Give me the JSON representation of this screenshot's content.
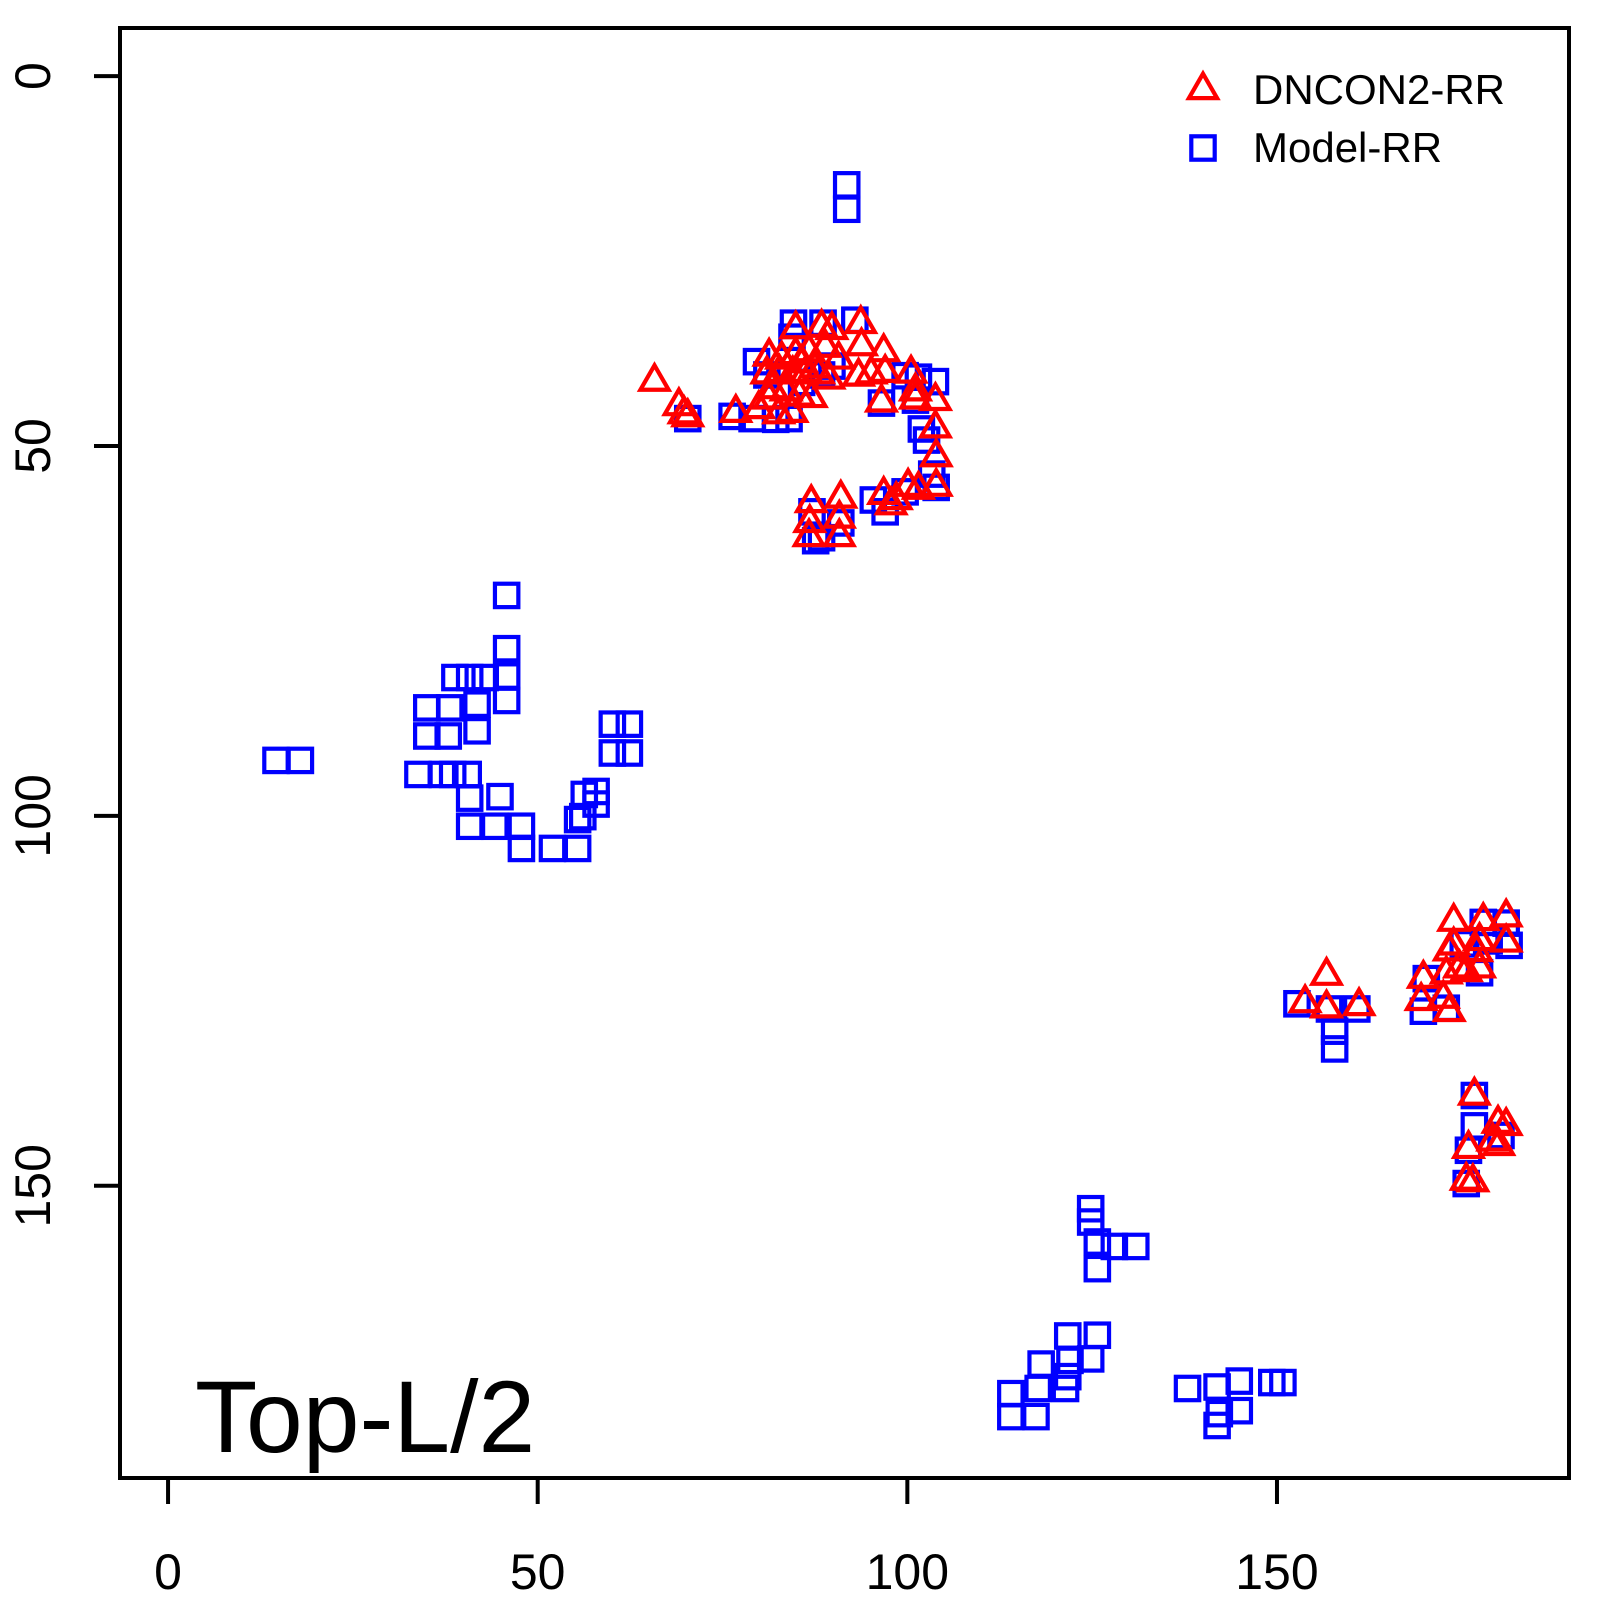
{
  "chart_data": {
    "type": "scatter",
    "title": "Top-L/2",
    "xlabel": "",
    "ylabel": "",
    "xlim": [
      -6.5,
      189.5
    ],
    "ylim": [
      -6.5,
      189.5
    ],
    "y_axis_reversed": true,
    "grid": false,
    "axis_color": "#000000",
    "x_ticks": [
      0,
      50,
      100,
      150
    ],
    "y_ticks": [
      0,
      50,
      100,
      150
    ],
    "legend_position": "top-right",
    "series": [
      {
        "name": "Model-RR",
        "marker": "open-square",
        "color": "#0000FF",
        "points": [
          [
            91.8,
            14.7
          ],
          [
            91.8,
            18.0
          ],
          [
            70.3,
            46.3
          ],
          [
            76.3,
            46.0
          ],
          [
            79.0,
            46.3
          ],
          [
            82.2,
            46.4
          ],
          [
            84.0,
            46.3
          ],
          [
            84.6,
            33.4
          ],
          [
            88.6,
            33.4
          ],
          [
            92.9,
            33.0
          ],
          [
            84.4,
            35.3
          ],
          [
            79.6,
            38.6
          ],
          [
            81.0,
            40.4
          ],
          [
            85.7,
            41.4
          ],
          [
            88.4,
            40.4
          ],
          [
            89.8,
            39.2
          ],
          [
            99.7,
            40.5
          ],
          [
            101.5,
            40.7
          ],
          [
            103.8,
            41.3
          ],
          [
            96.5,
            44.2
          ],
          [
            101.1,
            43.8
          ],
          [
            101.9,
            47.7
          ],
          [
            102.6,
            49.2
          ],
          [
            103.3,
            53.8
          ],
          [
            103.9,
            55.6
          ],
          [
            95.4,
            57.3
          ],
          [
            99.7,
            56.2
          ],
          [
            97.0,
            58.9
          ],
          [
            87.1,
            58.9
          ],
          [
            91.0,
            60.4
          ],
          [
            88.4,
            62.4
          ],
          [
            87.6,
            62.8
          ],
          [
            45.8,
            70.2
          ],
          [
            45.8,
            77.4
          ],
          [
            38.8,
            81.3
          ],
          [
            40.8,
            81.3
          ],
          [
            42.9,
            81.3
          ],
          [
            45.8,
            81.1
          ],
          [
            45.8,
            84.4
          ],
          [
            35.0,
            85.4
          ],
          [
            38.1,
            85.4
          ],
          [
            41.8,
            84.9
          ],
          [
            35.0,
            89.2
          ],
          [
            37.9,
            89.2
          ],
          [
            41.8,
            88.5
          ],
          [
            14.6,
            92.5
          ],
          [
            17.9,
            92.5
          ],
          [
            60.1,
            87.6
          ],
          [
            62.4,
            87.6
          ],
          [
            60.1,
            91.5
          ],
          [
            62.4,
            91.5
          ],
          [
            33.8,
            94.4
          ],
          [
            37.1,
            94.4
          ],
          [
            38.5,
            94.4
          ],
          [
            40.6,
            94.4
          ],
          [
            40.8,
            97.6
          ],
          [
            44.9,
            97.4
          ],
          [
            56.3,
            97.1
          ],
          [
            57.9,
            96.7
          ],
          [
            57.9,
            98.4
          ],
          [
            55.4,
            100.5
          ],
          [
            56.1,
            100.1
          ],
          [
            40.8,
            101.4
          ],
          [
            44.2,
            101.4
          ],
          [
            47.8,
            101.4
          ],
          [
            47.8,
            104.4
          ],
          [
            52.0,
            104.4
          ],
          [
            55.4,
            104.4
          ],
          [
            152.7,
            125.4
          ],
          [
            157.1,
            126.1
          ],
          [
            160.8,
            126.1
          ],
          [
            157.8,
            129.1
          ],
          [
            157.8,
            131.5
          ],
          [
            177.9,
            114.4
          ],
          [
            181.0,
            114.5
          ],
          [
            175.2,
            117.3
          ],
          [
            178.7,
            116.9
          ],
          [
            181.4,
            117.5
          ],
          [
            170.2,
            122.0
          ],
          [
            177.4,
            121.2
          ],
          [
            169.8,
            126.4
          ],
          [
            172.9,
            126.0
          ],
          [
            176.7,
            137.8
          ],
          [
            176.7,
            141.9
          ],
          [
            180.3,
            143.2
          ],
          [
            175.9,
            145.2
          ],
          [
            175.6,
            149.7
          ],
          [
            124.8,
            153.1
          ],
          [
            124.8,
            154.9
          ],
          [
            125.7,
            157.6
          ],
          [
            128.0,
            158.2
          ],
          [
            130.9,
            158.2
          ],
          [
            125.7,
            161.2
          ],
          [
            121.7,
            170.3
          ],
          [
            125.7,
            170.2
          ],
          [
            118.1,
            174.1
          ],
          [
            122.0,
            173.6
          ],
          [
            124.8,
            173.4
          ],
          [
            121.7,
            175.8
          ],
          [
            114.0,
            178.1
          ],
          [
            117.7,
            177.4
          ],
          [
            121.4,
            177.4
          ],
          [
            114.0,
            181.2
          ],
          [
            117.4,
            181.2
          ],
          [
            137.9,
            177.4
          ],
          [
            141.9,
            177.2
          ],
          [
            144.9,
            176.4
          ],
          [
            149.3,
            176.6
          ],
          [
            150.8,
            176.6
          ],
          [
            142.2,
            180.8
          ],
          [
            144.9,
            180.4
          ],
          [
            141.9,
            182.4
          ]
        ]
      },
      {
        "name": "DNCON2-RR",
        "marker": "open-triangle-up",
        "color": "#FF0000",
        "points": [
          [
            65.8,
            41.3
          ],
          [
            69.1,
            44.6
          ],
          [
            69.8,
            45.7
          ],
          [
            70.3,
            46.1
          ],
          [
            76.8,
            45.5
          ],
          [
            79.9,
            45.0
          ],
          [
            81.3,
            43.7
          ],
          [
            82.6,
            45.7
          ],
          [
            84.4,
            45.5
          ],
          [
            84.9,
            34.2
          ],
          [
            88.4,
            34.0
          ],
          [
            89.8,
            34.3
          ],
          [
            93.7,
            33.5
          ],
          [
            93.8,
            36.5
          ],
          [
            96.8,
            37.3
          ],
          [
            81.3,
            37.9
          ],
          [
            83.0,
            38.3
          ],
          [
            84.9,
            37.7
          ],
          [
            86.7,
            37.3
          ],
          [
            88.9,
            36.7
          ],
          [
            90.7,
            38.3
          ],
          [
            81.0,
            40.3
          ],
          [
            82.7,
            40.1
          ],
          [
            84.5,
            40.3
          ],
          [
            86.3,
            40.1
          ],
          [
            88.0,
            40.3
          ],
          [
            89.4,
            41.0
          ],
          [
            81.7,
            42.3
          ],
          [
            83.6,
            42.6
          ],
          [
            85.4,
            43.3
          ],
          [
            87.0,
            43.5
          ],
          [
            85.7,
            38.8
          ],
          [
            87.5,
            39.5
          ],
          [
            93.4,
            40.6
          ],
          [
            95.1,
            40.3
          ],
          [
            97.0,
            40.1
          ],
          [
            100.5,
            40.2
          ],
          [
            101.1,
            42.6
          ],
          [
            96.5,
            44.1
          ],
          [
            101.1,
            43.7
          ],
          [
            103.8,
            43.9
          ],
          [
            103.8,
            47.6
          ],
          [
            103.9,
            51.5
          ],
          [
            103.9,
            55.5
          ],
          [
            96.8,
            56.6
          ],
          [
            98.5,
            57.3
          ],
          [
            100.1,
            55.5
          ],
          [
            101.5,
            55.9
          ],
          [
            97.8,
            58.0
          ],
          [
            87.0,
            57.7
          ],
          [
            91.0,
            57.1
          ],
          [
            90.8,
            59.8
          ],
          [
            86.8,
            60.4
          ],
          [
            86.7,
            62.3
          ],
          [
            90.8,
            62.3
          ],
          [
            156.7,
            121.6
          ],
          [
            153.8,
            125.3
          ],
          [
            156.7,
            126.0
          ],
          [
            161.1,
            125.7
          ],
          [
            173.9,
            114.3
          ],
          [
            177.9,
            114.2
          ],
          [
            181.0,
            113.7
          ],
          [
            173.9,
            117.5
          ],
          [
            177.4,
            116.9
          ],
          [
            181.0,
            117.1
          ],
          [
            173.3,
            118.3
          ],
          [
            177.0,
            118.4
          ],
          [
            174.7,
            120.6
          ],
          [
            177.4,
            120.6
          ],
          [
            169.8,
            122.0
          ],
          [
            172.9,
            121.4
          ],
          [
            175.6,
            121.1
          ],
          [
            169.5,
            125.0
          ],
          [
            172.5,
            124.7
          ],
          [
            173.3,
            126.5
          ],
          [
            176.7,
            137.8
          ],
          [
            179.9,
            141.6
          ],
          [
            181.0,
            141.9
          ],
          [
            179.2,
            144.0
          ],
          [
            180.0,
            144.6
          ],
          [
            175.9,
            145.0
          ],
          [
            175.6,
            149.3
          ],
          [
            176.5,
            149.5
          ]
        ]
      }
    ]
  }
}
